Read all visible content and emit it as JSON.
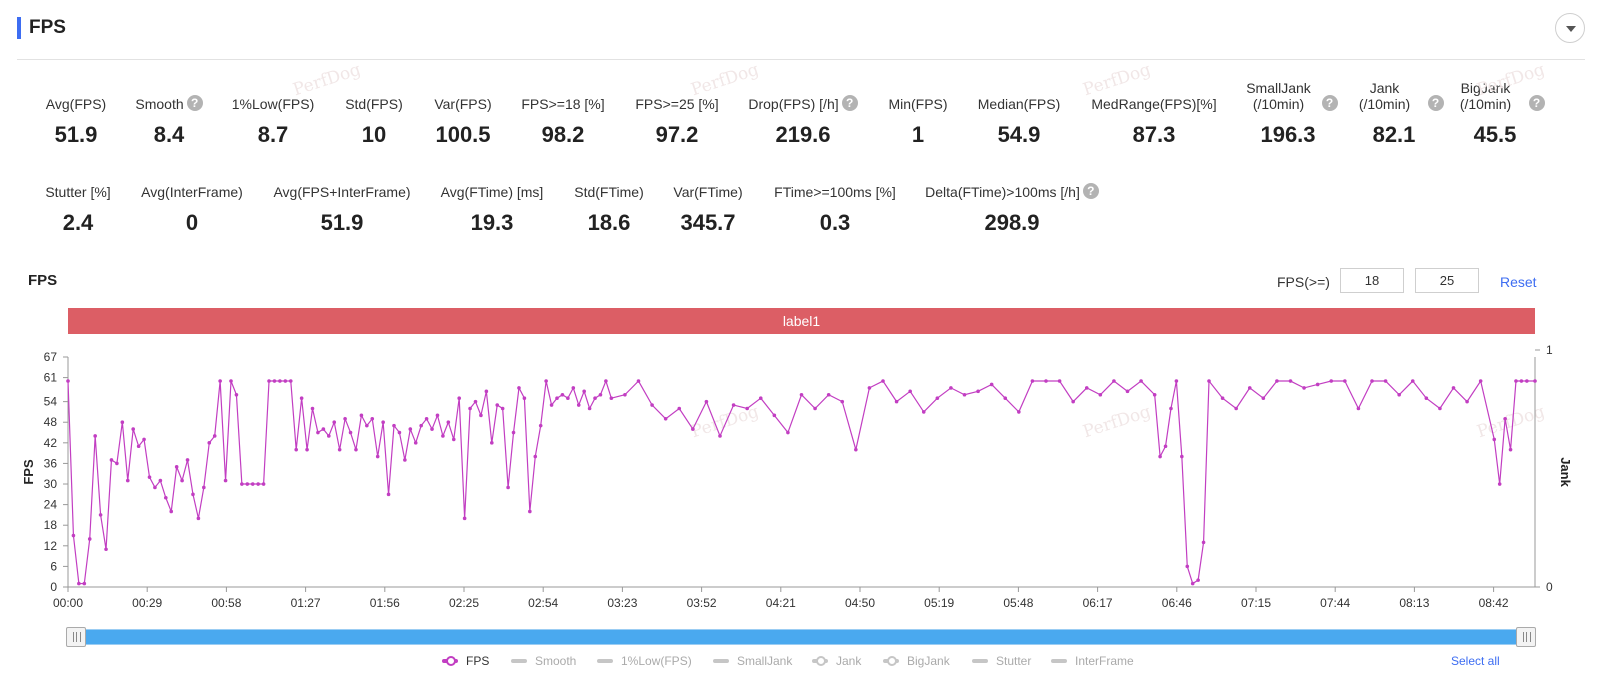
{
  "header": {
    "title": "FPS"
  },
  "stats_row1": [
    {
      "label": "Avg(FPS)",
      "value": "51.9",
      "help": false
    },
    {
      "label": "Smooth",
      "value": "8.4",
      "help": true
    },
    {
      "label": "1%Low(FPS)",
      "value": "8.7",
      "help": false
    },
    {
      "label": "Std(FPS)",
      "value": "10",
      "help": false
    },
    {
      "label": "Var(FPS)",
      "value": "100.5",
      "help": false
    },
    {
      "label": "FPS>=18 [%]",
      "value": "98.2",
      "help": false
    },
    {
      "label": "FPS>=25 [%]",
      "value": "97.2",
      "help": false
    },
    {
      "label": "Drop(FPS) [/h]",
      "value": "219.6",
      "help": true
    },
    {
      "label": "Min(FPS)",
      "value": "1",
      "help": false
    },
    {
      "label": "Median(FPS)",
      "value": "54.9",
      "help": false
    },
    {
      "label": "MedRange(FPS)[%]",
      "value": "87.3",
      "help": false
    },
    {
      "label": "SmallJank (/10min)",
      "value": "196.3",
      "help": true
    },
    {
      "label": "Jank (/10min)",
      "value": "82.1",
      "help": true
    },
    {
      "label": "BigJank (/10min)",
      "value": "45.5",
      "help": true
    }
  ],
  "stats_row2": [
    {
      "label": "Stutter [%]",
      "value": "2.4",
      "help": false
    },
    {
      "label": "Avg(InterFrame)",
      "value": "0",
      "help": false
    },
    {
      "label": "Avg(FPS+InterFrame)",
      "value": "51.9",
      "help": false
    },
    {
      "label": "Avg(FTime) [ms]",
      "value": "19.3",
      "help": false
    },
    {
      "label": "Std(FTime)",
      "value": "18.6",
      "help": false
    },
    {
      "label": "Var(FTime)",
      "value": "345.7",
      "help": false
    },
    {
      "label": "FTime>=100ms [%]",
      "value": "0.3",
      "help": false
    },
    {
      "label": "Delta(FTime)>100ms [/h]",
      "value": "298.9",
      "help": true
    }
  ],
  "watermark": "PerfDog",
  "chart": {
    "title": "FPS",
    "threshold_label": "FPS(>=)",
    "threshold_1": "18",
    "threshold_2": "25",
    "reset_label": "Reset",
    "label_bar": "label1",
    "select_all_label": "Select all",
    "help_glyph": "?"
  },
  "legend": [
    {
      "name": "FPS",
      "active": true,
      "marker": "dot"
    },
    {
      "name": "Smooth",
      "active": false,
      "marker": "line"
    },
    {
      "name": "1%Low(FPS)",
      "active": false,
      "marker": "line"
    },
    {
      "name": "SmallJank",
      "active": false,
      "marker": "line"
    },
    {
      "name": "Jank",
      "active": false,
      "marker": "dot"
    },
    {
      "name": "BigJank",
      "active": false,
      "marker": "dot"
    },
    {
      "name": "Stutter",
      "active": false,
      "marker": "line"
    },
    {
      "name": "InterFrame",
      "active": false,
      "marker": "line"
    }
  ],
  "chart_data": {
    "type": "line",
    "title": "",
    "xlabel": "",
    "ylabel": "FPS",
    "y2label": "Jank",
    "x_ticks": [
      "00:00",
      "00:29",
      "00:58",
      "01:27",
      "01:56",
      "02:25",
      "02:54",
      "03:23",
      "03:52",
      "04:21",
      "04:50",
      "05:19",
      "05:48",
      "06:17",
      "06:46",
      "07:15",
      "07:44",
      "08:13",
      "08:42"
    ],
    "y_ticks": [
      0,
      6,
      12,
      18,
      24,
      30,
      36,
      42,
      48,
      54,
      61,
      67
    ],
    "ylim": [
      0,
      67
    ],
    "y2_ticks": [
      0,
      1
    ],
    "y2lim": [
      0,
      1
    ],
    "xlim_seconds": [
      0,
      540
    ],
    "series": [
      {
        "name": "FPS",
        "color": "#c23ec2",
        "x": [
          0,
          2,
          4,
          6,
          8,
          10,
          12,
          14,
          16,
          18,
          20,
          22,
          24,
          26,
          28,
          30,
          32,
          34,
          36,
          38,
          40,
          42,
          44,
          46,
          48,
          50,
          52,
          54,
          56,
          58,
          60,
          62,
          64,
          66,
          68,
          70,
          72,
          74,
          76,
          78,
          80,
          82,
          84,
          86,
          88,
          90,
          92,
          94,
          96,
          98,
          100,
          102,
          104,
          106,
          108,
          110,
          112,
          114,
          116,
          118,
          120,
          122,
          124,
          126,
          128,
          130,
          132,
          134,
          136,
          138,
          140,
          142,
          144,
          146,
          148,
          150,
          152,
          154,
          156,
          158,
          160,
          162,
          164,
          166,
          168,
          170,
          172,
          174,
          176,
          178,
          180,
          182,
          184,
          186,
          188,
          190,
          192,
          194,
          196,
          198,
          200,
          205,
          210,
          215,
          220,
          225,
          230,
          235,
          240,
          245,
          250,
          255,
          260,
          265,
          270,
          275,
          280,
          285,
          290,
          295,
          300,
          305,
          310,
          315,
          320,
          325,
          330,
          335,
          340,
          345,
          350,
          355,
          360,
          365,
          370,
          375,
          380,
          385,
          390,
          395,
          400,
          402,
          404,
          406,
          408,
          410,
          412,
          414,
          416,
          418,
          420,
          425,
          430,
          435,
          440,
          445,
          450,
          455,
          460,
          465,
          470,
          475,
          480,
          485,
          490,
          495,
          500,
          505,
          510,
          515,
          520,
          525,
          527,
          529,
          531,
          533,
          535,
          537,
          540
        ],
        "y": [
          60,
          15,
          1,
          1,
          14,
          44,
          21,
          11,
          37,
          36,
          48,
          31,
          46,
          41,
          43,
          32,
          29,
          31,
          26,
          22,
          35,
          31,
          37,
          27,
          20,
          29,
          42,
          44,
          60,
          31,
          60,
          56,
          30,
          30,
          30,
          30,
          30,
          60,
          60,
          60,
          60,
          60,
          40,
          55,
          40,
          52,
          45,
          46,
          44,
          48,
          40,
          49,
          45,
          40,
          50,
          47,
          49,
          38,
          48,
          27,
          47,
          45,
          37,
          46,
          42,
          47,
          49,
          46,
          50,
          44,
          48,
          43,
          55,
          20,
          52,
          54,
          50,
          57,
          42,
          53,
          52,
          29,
          45,
          58,
          55,
          22,
          38,
          47,
          60,
          53,
          55,
          56,
          55,
          58,
          53,
          57,
          52,
          55,
          56,
          60,
          55,
          56,
          60,
          53,
          49,
          52,
          46,
          54,
          44,
          53,
          52,
          55,
          50,
          45,
          56,
          52,
          56,
          54,
          40,
          58,
          60,
          54,
          57,
          51,
          55,
          58,
          56,
          57,
          59,
          55,
          51,
          60,
          60,
          60,
          54,
          58,
          56,
          60,
          57,
          60,
          56,
          38,
          41,
          52,
          60,
          38,
          6,
          1,
          2,
          13,
          60,
          55,
          52,
          58,
          55,
          60,
          60,
          58,
          59,
          60,
          60,
          52,
          60,
          60,
          56,
          60,
          55,
          52,
          58,
          54,
          60,
          43,
          30,
          49,
          40,
          60,
          60,
          60,
          60
        ]
      }
    ],
    "bands": [
      {
        "label": "label1",
        "start_seconds": 0,
        "end_seconds": 540,
        "color": "#dc5e65"
      }
    ],
    "grid": false,
    "legend_position": "bottom"
  }
}
